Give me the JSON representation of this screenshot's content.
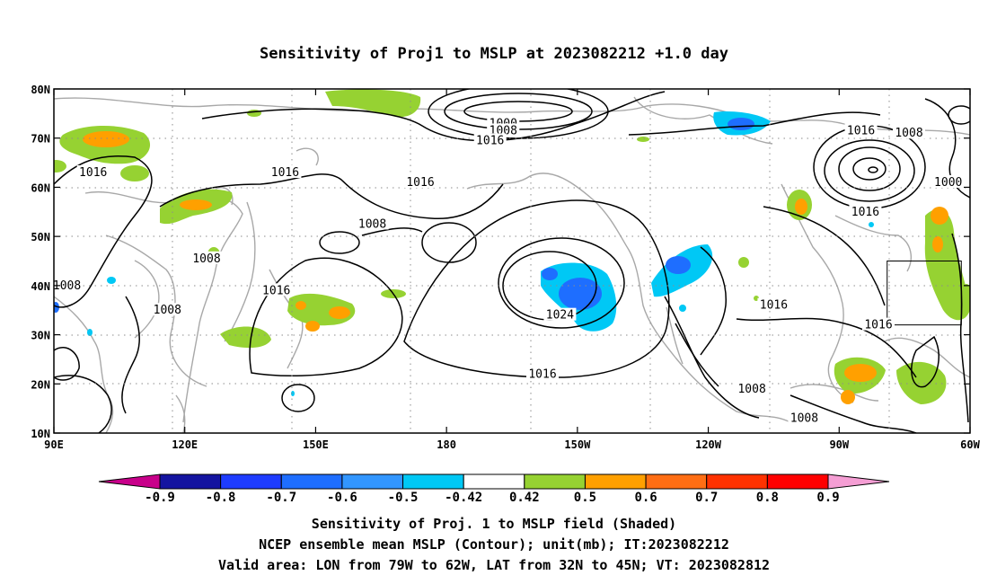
{
  "title": "Sensitivity of Proj1 to MSLP at 2023082212 +1.0 day",
  "map": {
    "lon_ticks": [
      "90E",
      "120E",
      "150E",
      "180",
      "150W",
      "120W",
      "90W",
      "60W"
    ],
    "lat_ticks": [
      "80N",
      "70N",
      "60N",
      "50N",
      "40N",
      "30N",
      "20N",
      "10N"
    ],
    "lon_range": [
      90,
      300
    ],
    "lat_range": [
      10,
      80
    ],
    "grid": true,
    "valid_box": {
      "lon": [
        281,
        298
      ],
      "lat": [
        32,
        45
      ]
    },
    "contour_labels": [
      {
        "text": "1000",
        "lon": 193,
        "lat": 73
      },
      {
        "text": "1008",
        "lon": 193,
        "lat": 71.5
      },
      {
        "text": "1016",
        "lon": 190,
        "lat": 69.5
      },
      {
        "text": "1016",
        "lon": 275,
        "lat": 71.5
      },
      {
        "text": "1008",
        "lon": 286,
        "lat": 71
      },
      {
        "text": "1000",
        "lon": 295,
        "lat": 61
      },
      {
        "text": "1016",
        "lon": 99,
        "lat": 63
      },
      {
        "text": "1016",
        "lon": 143,
        "lat": 63
      },
      {
        "text": "1016",
        "lon": 174,
        "lat": 61
      },
      {
        "text": "1008",
        "lon": 163,
        "lat": 52.5
      },
      {
        "text": "1008",
        "lon": 125,
        "lat": 45.5
      },
      {
        "text": "1016",
        "lon": 141,
        "lat": 39
      },
      {
        "text": "1008",
        "lon": 93,
        "lat": 40
      },
      {
        "text": "1008",
        "lon": 116,
        "lat": 35
      },
      {
        "text": "1016",
        "lon": 276,
        "lat": 55
      },
      {
        "text": "1024",
        "lon": 206,
        "lat": 34
      },
      {
        "text": "1016",
        "lon": 255,
        "lat": 36
      },
      {
        "text": "1016",
        "lon": 279,
        "lat": 32
      },
      {
        "text": "1016",
        "lon": 202,
        "lat": 22
      },
      {
        "text": "1008",
        "lon": 250,
        "lat": 19
      },
      {
        "text": "1008",
        "lon": 262,
        "lat": 13
      }
    ]
  },
  "colorbar": {
    "labels": [
      "-0.9",
      "-0.8",
      "-0.7",
      "-0.6",
      "-0.5",
      "-0.42",
      "0.42",
      "0.5",
      "0.6",
      "0.7",
      "0.8",
      "0.9"
    ],
    "colors": [
      "#c8008a",
      "#1414a0",
      "#1e3cff",
      "#1e6eff",
      "#3296ff",
      "#00c8f5",
      "#ffffff",
      "#96d232",
      "#ffa000",
      "#ff6e14",
      "#ff3200",
      "#ff0000",
      "#f59ed4"
    ]
  },
  "captions": [
    "Sensitivity of Proj. 1 to MSLP field (Shaded)",
    "NCEP ensemble mean MSLP (Contour); unit(mb); IT:2023082212",
    "Valid area: LON from 79W to 62W, LAT from 32N to 45N; VT: 2023082812"
  ]
}
